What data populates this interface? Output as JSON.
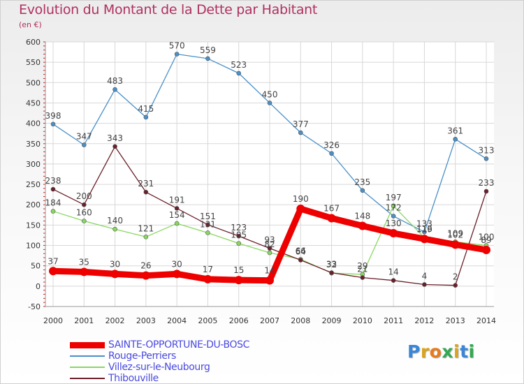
{
  "title": "Evolution du Montant de la Dette par Habitant",
  "subtitle": "(en €)",
  "logo": {
    "text": "Proxiti",
    "colors": [
      "#3a86d8",
      "#d9a51e",
      "#e87b1c",
      "#34a852",
      "#d9a51e",
      "#3a86d8",
      "#34a852"
    ]
  },
  "chart_data": {
    "type": "line",
    "title": "Evolution du Montant de la Dette par Habitant",
    "ylabel": "(en €)",
    "xlabel": "",
    "x": [
      "2000",
      "2001",
      "2002",
      "2003",
      "2004",
      "2005",
      "2006",
      "2007",
      "2008",
      "2009",
      "2010",
      "2011",
      "2012",
      "2013",
      "2014"
    ],
    "ylim": [
      -50,
      600
    ],
    "yticks": [
      -50,
      0,
      50,
      100,
      150,
      200,
      250,
      300,
      350,
      400,
      450,
      500,
      550,
      600
    ],
    "grid": true,
    "legend_position": "bottom-left",
    "series": [
      {
        "name": "SAINTE-OPPORTUNE-DU-BOSC",
        "color": "#ee0000",
        "emphasis": true,
        "values": [
          37,
          35,
          30,
          26,
          30,
          17,
          15,
          14,
          190,
          167,
          148,
          130,
          116,
          102,
          89
        ],
        "labels": [
          "37",
          "35",
          "30",
          "26",
          "30",
          "17",
          "15",
          "14",
          "190",
          "167",
          "148",
          "130",
          "116",
          "102",
          "89"
        ]
      },
      {
        "name": "Rouge-Perriers",
        "color": "#4a90c8",
        "values": [
          398,
          347,
          483,
          415,
          570,
          559,
          523,
          450,
          377,
          326,
          235,
          172,
          133,
          361,
          313
        ],
        "labels": [
          "398",
          "347",
          "483",
          "415",
          "570",
          "559",
          "523",
          "450",
          "377",
          "326",
          "235",
          "172",
          "133",
          "361",
          "313"
        ]
      },
      {
        "name": "Villez-sur-le-Neubourg",
        "color": "#88d860",
        "values": [
          184,
          160,
          140,
          121,
          154,
          131,
          105,
          82,
          66,
          32,
          29,
          197,
          119,
          109,
          100
        ],
        "labels": [
          "184",
          "160",
          "140",
          "121",
          "154",
          "131",
          "105",
          "82",
          "66",
          "32",
          "29",
          "197",
          "119",
          "109",
          "100"
        ]
      },
      {
        "name": "Thibouville",
        "color": "#6b1f2a",
        "values": [
          238,
          200,
          343,
          231,
          191,
          151,
          123,
          93,
          64,
          33,
          21,
          14,
          4,
          2,
          233
        ],
        "labels": [
          "238",
          "200",
          "343",
          "231",
          "191",
          "151",
          "123",
          "93",
          "64",
          "33",
          "21",
          "14",
          "4",
          "2",
          "233"
        ]
      }
    ]
  }
}
